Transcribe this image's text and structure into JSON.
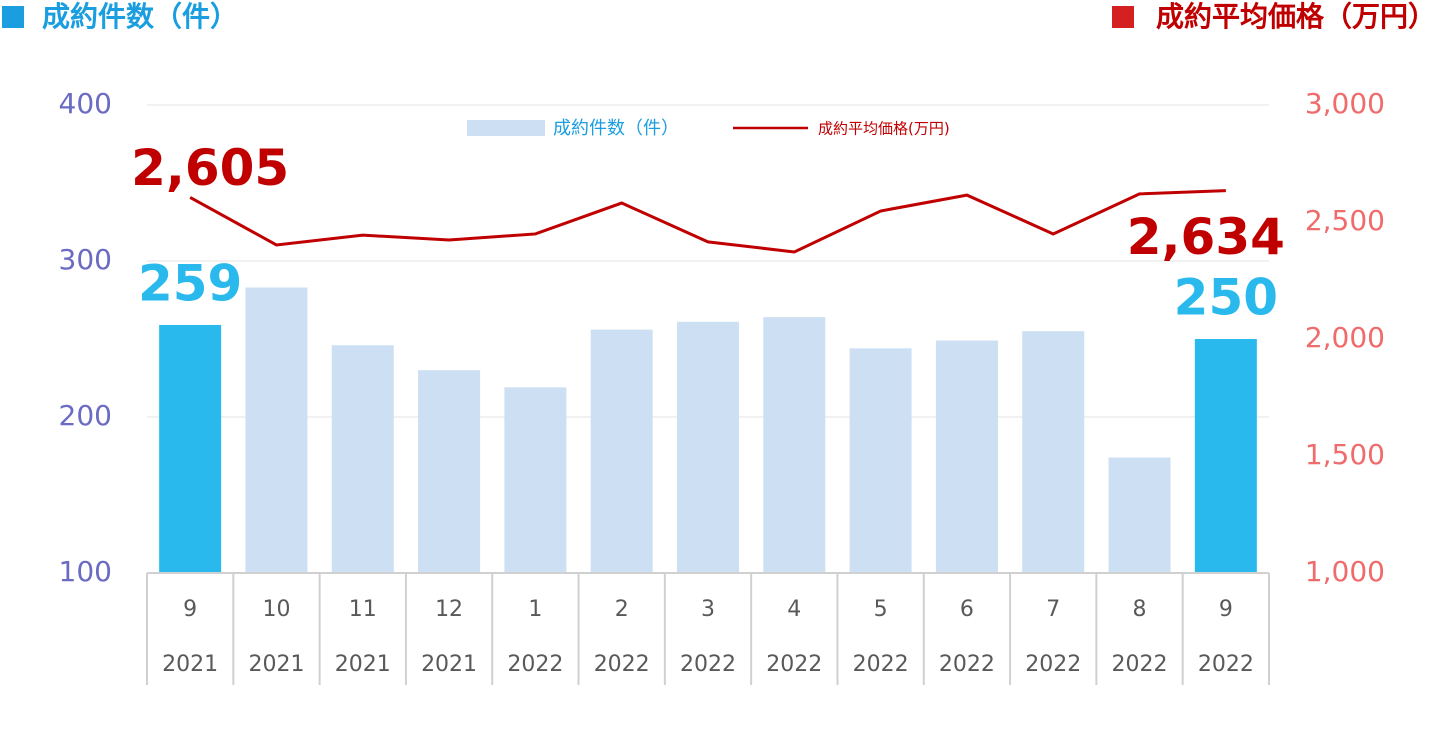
{
  "chart_data": {
    "type": "bar_line",
    "header_left": "成約件数（件）",
    "header_right": "成約平均価格（万円）",
    "categories": [
      "9",
      "10",
      "11",
      "12",
      "1",
      "2",
      "3",
      "4",
      "5",
      "6",
      "7",
      "8",
      "9"
    ],
    "years": [
      "2021",
      "2021",
      "2021",
      "2021",
      "2022",
      "2022",
      "2022",
      "2022",
      "2022",
      "2022",
      "2022",
      "2022",
      "2022"
    ],
    "series": [
      {
        "name": "成約件数（件）",
        "type": "bar",
        "color": "#cddff3",
        "highlight_color": "#29b9ec",
        "values": [
          259,
          283,
          246,
          230,
          219,
          256,
          261,
          264,
          244,
          249,
          255,
          174,
          250
        ],
        "value_labels": [
          "259",
          null,
          null,
          null,
          null,
          null,
          null,
          null,
          null,
          null,
          null,
          null,
          "250"
        ]
      },
      {
        "name": "成約平均価格(万円)",
        "type": "line",
        "axis": "y2",
        "color": "#c00000",
        "values": [
          2605,
          2402,
          2444,
          2423,
          2449,
          2581,
          2415,
          2372,
          2547,
          2615,
          2449,
          2620,
          2634
        ],
        "value_labels": [
          "2,605",
          null,
          null,
          null,
          null,
          null,
          null,
          null,
          null,
          null,
          null,
          null,
          "2,634"
        ]
      }
    ],
    "highlight": [
      true,
      false,
      false,
      false,
      false,
      false,
      false,
      false,
      false,
      false,
      false,
      false,
      true
    ],
    "ylim": [
      100,
      400
    ],
    "yticks": [
      100,
      200,
      300,
      400
    ],
    "y2lim": [
      1000,
      3000
    ],
    "y2ticks": [
      {
        "value": 1000,
        "label": "1,000"
      },
      {
        "value": 1500,
        "label": "1,500"
      },
      {
        "value": 2000,
        "label": "2,000"
      },
      {
        "value": 2500,
        "label": "2,500"
      },
      {
        "value": 3000,
        "label": "3,000"
      }
    ],
    "grid": true
  }
}
